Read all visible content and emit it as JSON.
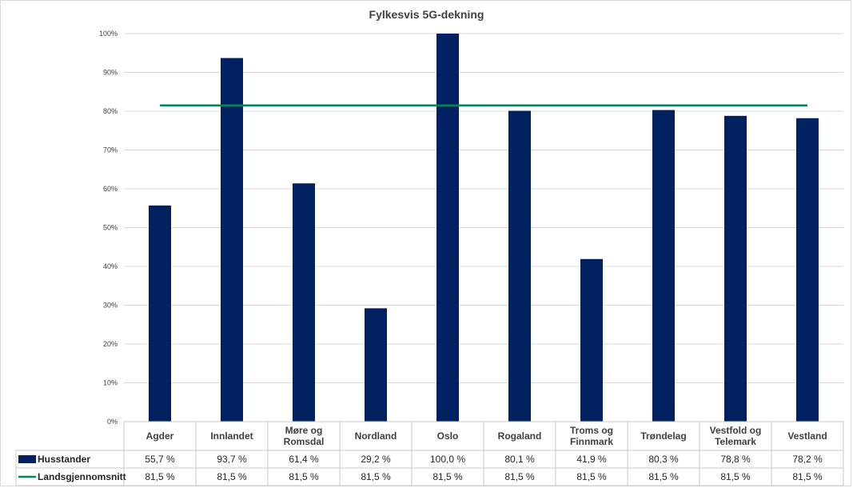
{
  "chart_data": {
    "type": "bar",
    "title": "Fylkesvis 5G-dekning",
    "categories": [
      [
        "Agder"
      ],
      [
        "Innlandet"
      ],
      [
        "Møre og",
        "Romsdal"
      ],
      [
        "Nordland"
      ],
      [
        "Oslo"
      ],
      [
        "Rogaland"
      ],
      [
        "Troms og",
        "Finnmark"
      ],
      [
        "Trøndelag"
      ],
      [
        "Vestfold og",
        "Telemark"
      ],
      [
        "Vestland"
      ]
    ],
    "series": [
      {
        "name": "Husstander",
        "type": "bar",
        "color": "#002060",
        "values": [
          55.7,
          93.7,
          61.4,
          29.2,
          100.0,
          80.1,
          41.9,
          80.3,
          78.8,
          78.2
        ],
        "labels": [
          "55,7 %",
          "93,7 %",
          "61,4 %",
          "29,2 %",
          "100,0 %",
          "80,1 %",
          "41,9 %",
          "80,3 %",
          "78,8 %",
          "78,2 %"
        ]
      },
      {
        "name": "Landsgjennomsnitt",
        "type": "line",
        "color": "#00875a",
        "values": [
          81.5,
          81.5,
          81.5,
          81.5,
          81.5,
          81.5,
          81.5,
          81.5,
          81.5,
          81.5
        ],
        "labels": [
          "81,5 %",
          "81,5 %",
          "81,5 %",
          "81,5 %",
          "81,5 %",
          "81,5 %",
          "81,5 %",
          "81,5 %",
          "81,5 %",
          "81,5 %"
        ]
      }
    ],
    "ylim": [
      0,
      100
    ],
    "yticks": [
      0,
      10,
      20,
      30,
      40,
      50,
      60,
      70,
      80,
      90,
      100
    ],
    "ytick_labels": [
      "0%",
      "10%",
      "20%",
      "30%",
      "40%",
      "50%",
      "60%",
      "70%",
      "80%",
      "90%",
      "100%"
    ],
    "grid": true,
    "legend": "data-table"
  }
}
